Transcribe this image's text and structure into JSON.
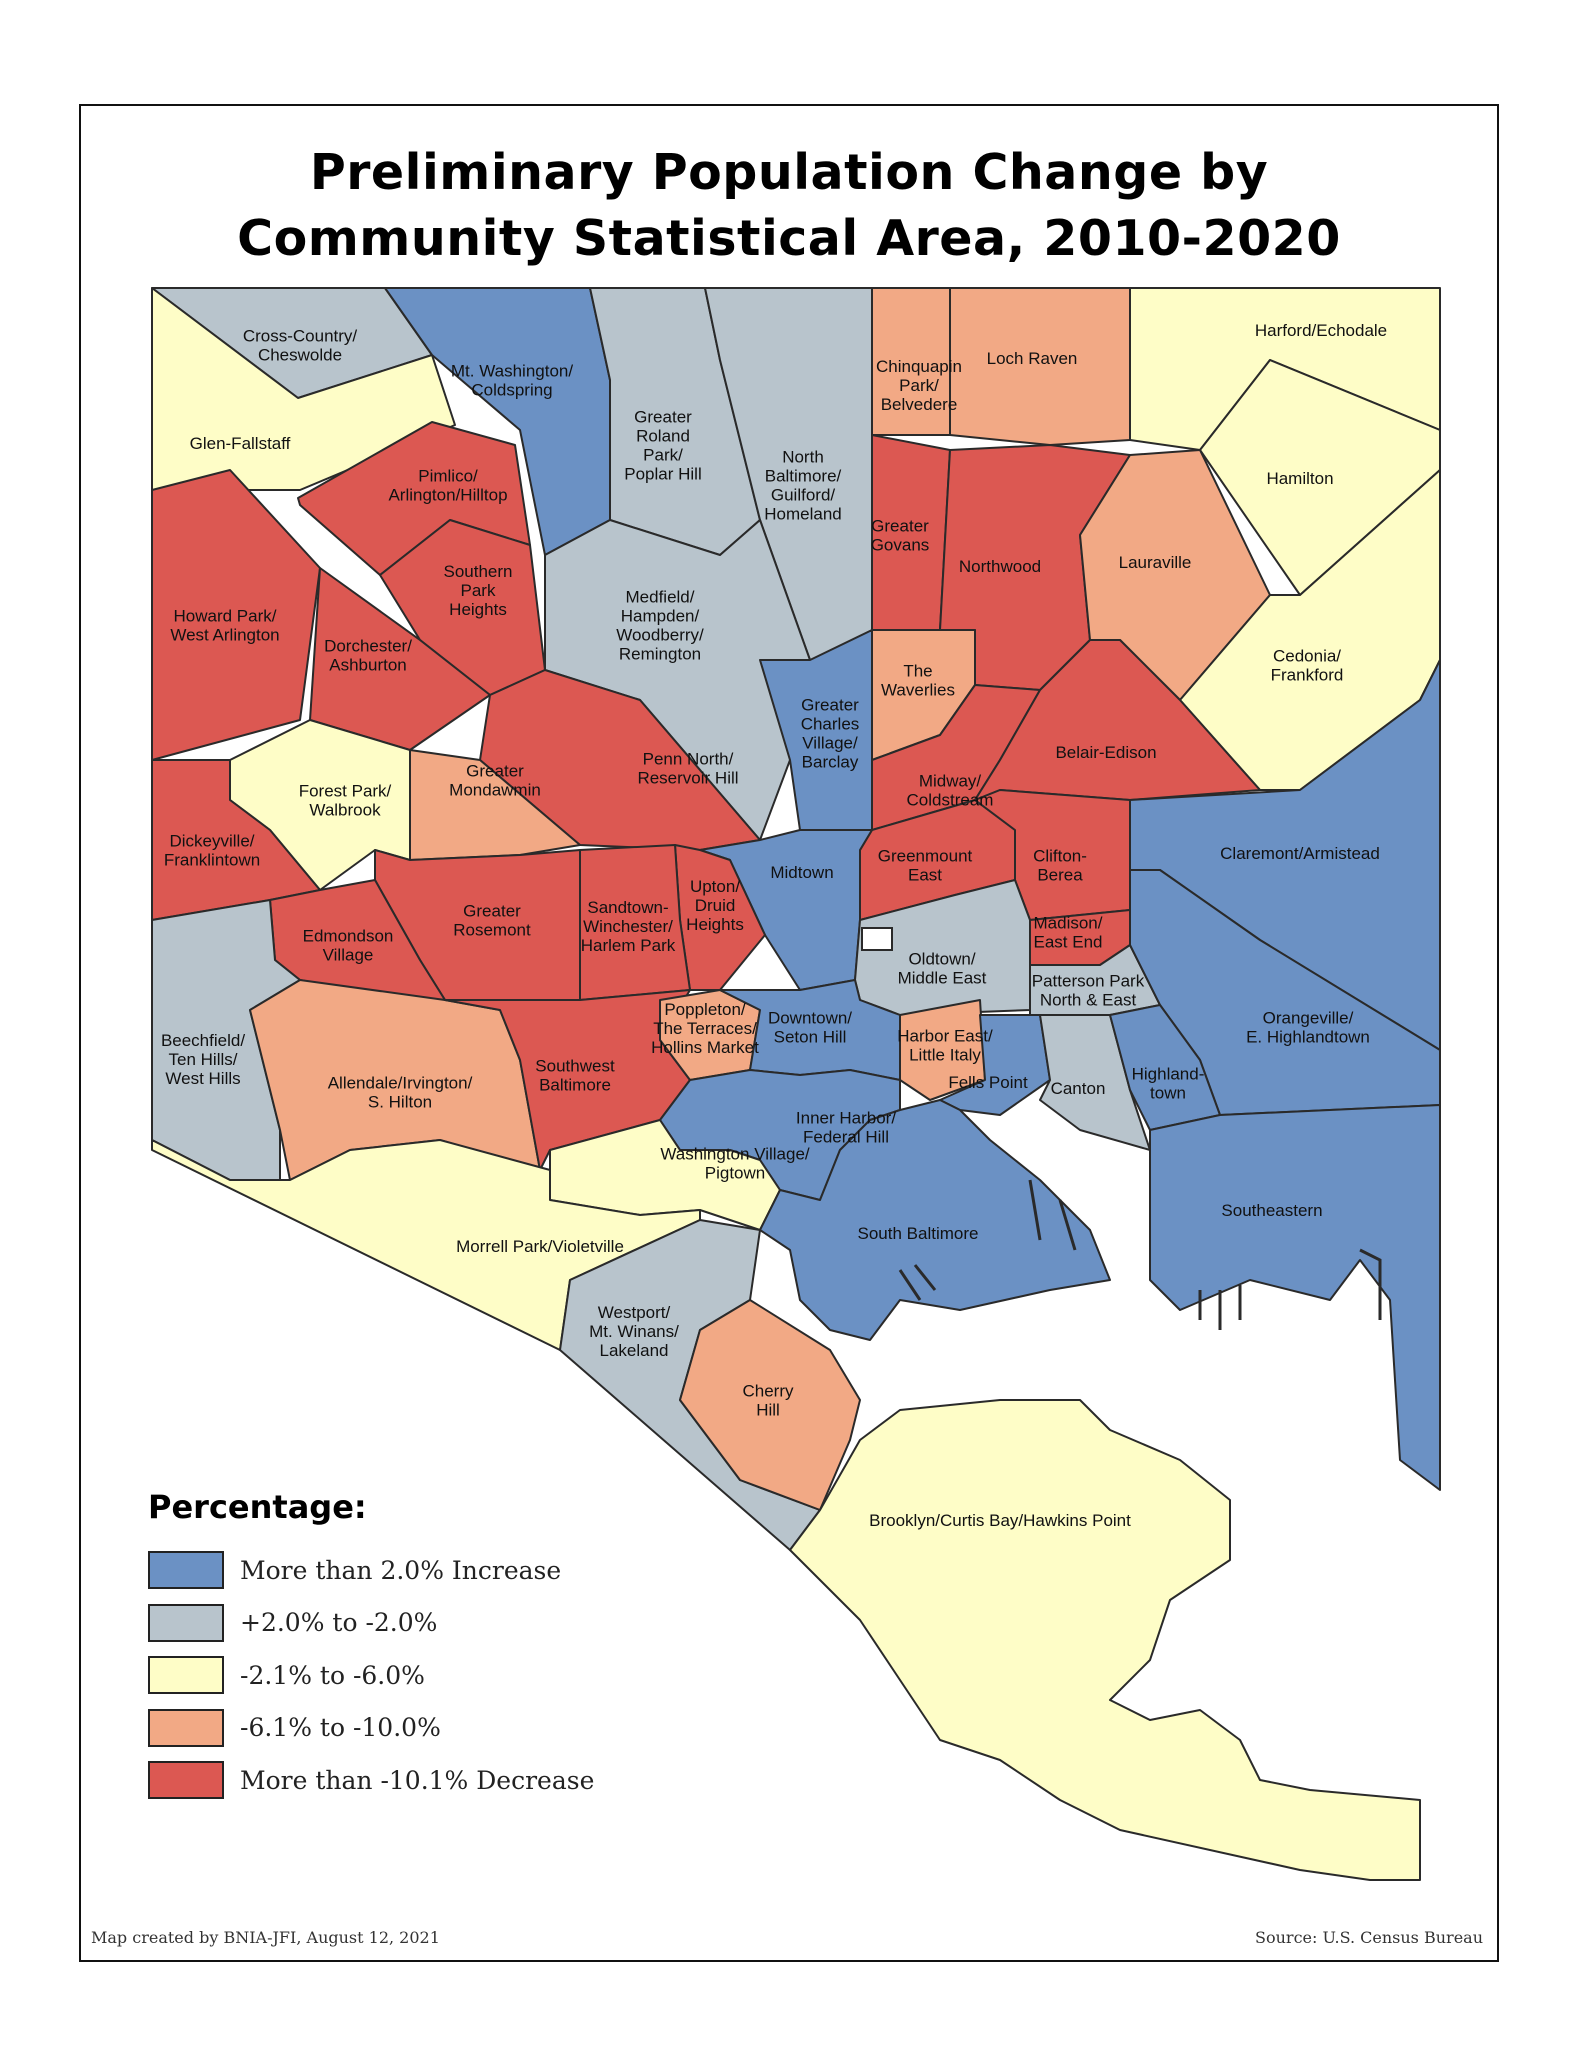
{
  "title": {
    "line1": "Preliminary Population Change by",
    "line2": "Community Statistical Area, 2010-2020"
  },
  "legend": {
    "title": "Percentage:",
    "items": [
      {
        "label": "More than 2.0% Increase",
        "color": "#6b91c4"
      },
      {
        "label": "+2.0% to -2.0%",
        "color": "#b8c4cc"
      },
      {
        "label": "-2.1% to -6.0%",
        "color": "#fefdc7"
      },
      {
        "label": "-6.1% to -10.0%",
        "color": "#f2a985"
      },
      {
        "label": "More than -10.1% Decrease",
        "color": "#dc5852"
      }
    ]
  },
  "areas": [
    {
      "name": "Cross-Country/ Cheswolde",
      "lines": [
        "Cross-Country/",
        "Cheswolde"
      ],
      "category": "+2.0% to -2.0%"
    },
    {
      "name": "Mt. Washington/ Coldspring",
      "lines": [
        "Mt. Washington/",
        "Coldspring"
      ],
      "category": "More than 2.0% Increase"
    },
    {
      "name": "Greater Roland Park/ Poplar Hill",
      "lines": [
        "Greater",
        "Roland",
        "Park/",
        "Poplar Hill"
      ],
      "category": "+2.0% to -2.0%"
    },
    {
      "name": "North Baltimore/ Guilford/ Homeland",
      "lines": [
        "North",
        "Baltimore/",
        "Guilford/",
        "Homeland"
      ],
      "category": "+2.0% to -2.0%"
    },
    {
      "name": "Chinquapin Park/ Belvedere",
      "lines": [
        "Chinquapin",
        "Park/",
        "Belvedere"
      ],
      "category": "-6.1% to -10.0%"
    },
    {
      "name": "Loch Raven",
      "lines": [
        "Loch Raven"
      ],
      "category": "-6.1% to -10.0%"
    },
    {
      "name": "Harford/Echodale",
      "lines": [
        "Harford/Echodale"
      ],
      "category": "-2.1% to -6.0%"
    },
    {
      "name": "Glen-Fallstaff",
      "lines": [
        "Glen-Fallstaff"
      ],
      "category": "-2.1% to -6.0%"
    },
    {
      "name": "Pimlico/ Arlington/Hilltop",
      "lines": [
        "Pimlico/",
        "Arlington/Hilltop"
      ],
      "category": "More than -10.1% Decrease"
    },
    {
      "name": "Hamilton",
      "lines": [
        "Hamilton"
      ],
      "category": "-2.1% to -6.0%"
    },
    {
      "name": "Greater Govans",
      "lines": [
        "Greater",
        "Govans"
      ],
      "category": "More than -10.1% Decrease"
    },
    {
      "name": "Northwood",
      "lines": [
        "Northwood"
      ],
      "category": "More than -10.1% Decrease"
    },
    {
      "name": "Lauraville",
      "lines": [
        "Lauraville"
      ],
      "category": "-6.1% to -10.0%"
    },
    {
      "name": "Southern Park Heights",
      "lines": [
        "Southern",
        "Park",
        "Heights"
      ],
      "category": "More than -10.1% Decrease"
    },
    {
      "name": "Howard Park/ West Arlington",
      "lines": [
        "Howard Park/",
        "West Arlington"
      ],
      "category": "More than -10.1% Decrease"
    },
    {
      "name": "Medfield/ Hampden/ Woodberry/ Remington",
      "lines": [
        "Medfield/",
        "Hampden/",
        "Woodberry/",
        "Remington"
      ],
      "category": "+2.0% to -2.0%"
    },
    {
      "name": "Dorchester/ Ashburton",
      "lines": [
        "Dorchester/",
        "Ashburton"
      ],
      "category": "More than -10.1% Decrease"
    },
    {
      "name": "The Waverlies",
      "lines": [
        "The",
        "Waverlies"
      ],
      "category": "-6.1% to -10.0%"
    },
    {
      "name": "Cedonia/ Frankford",
      "lines": [
        "Cedonia/",
        "Frankford"
      ],
      "category": "-2.1% to -6.0%"
    },
    {
      "name": "Greater Charles Village/ Barclay",
      "lines": [
        "Greater",
        "Charles",
        "Village/",
        "Barclay"
      ],
      "category": "More than 2.0% Increase"
    },
    {
      "name": "Penn North/ Reservoir Hill",
      "lines": [
        "Penn North/",
        "Reservoir Hill"
      ],
      "category": "More than -10.1% Decrease"
    },
    {
      "name": "Belair-Edison",
      "lines": [
        "Belair-Edison"
      ],
      "category": "More than -10.1% Decrease"
    },
    {
      "name": "Greater Mondawmin",
      "lines": [
        "Greater",
        "Mondawmin"
      ],
      "category": "-6.1% to -10.0%"
    },
    {
      "name": "Forest Park/ Walbrook",
      "lines": [
        "Forest Park/",
        "Walbrook"
      ],
      "category": "-2.1% to -6.0%"
    },
    {
      "name": "Midway/ Coldstream",
      "lines": [
        "Midway/",
        "Coldstream"
      ],
      "category": "More than -10.1% Decrease"
    },
    {
      "name": "Dickeyville/ Franklintown",
      "lines": [
        "Dickeyville/",
        "Franklintown"
      ],
      "category": "More than -10.1% Decrease"
    },
    {
      "name": "Claremont/Armistead",
      "lines": [
        "Claremont/Armistead"
      ],
      "category": "More than 2.0% Increase"
    },
    {
      "name": "Greenmount East",
      "lines": [
        "Greenmount",
        "East"
      ],
      "category": "More than -10.1% Decrease"
    },
    {
      "name": "Clifton-Berea",
      "lines": [
        "Clifton-",
        "Berea"
      ],
      "category": "More than -10.1% Decrease"
    },
    {
      "name": "Midtown",
      "lines": [
        "Midtown"
      ],
      "category": "More than 2.0% Increase"
    },
    {
      "name": "Upton/ Druid Heights",
      "lines": [
        "Upton/",
        "Druid",
        "Heights"
      ],
      "category": "More than -10.1% Decrease"
    },
    {
      "name": "Sandtown-Winchester/ Harlem Park",
      "lines": [
        "Sandtown-",
        "Winchester/",
        "Harlem Park"
      ],
      "category": "More than -10.1% Decrease"
    },
    {
      "name": "Greater Rosemont",
      "lines": [
        "Greater",
        "Rosemont"
      ],
      "category": "More than -10.1% Decrease"
    },
    {
      "name": "Edmondson Village",
      "lines": [
        "Edmondson",
        "Village"
      ],
      "category": "More than -10.1% Decrease"
    },
    {
      "name": "Madison/ East End",
      "lines": [
        "Madison/",
        "East End"
      ],
      "category": "More than -10.1% Decrease"
    },
    {
      "name": "Oldtown/ Middle East",
      "lines": [
        "Oldtown/",
        "Middle East"
      ],
      "category": "+2.0% to -2.0%"
    },
    {
      "name": "Patterson Park North & East",
      "lines": [
        "Patterson Park",
        "North & East"
      ],
      "category": "+2.0% to -2.0%"
    },
    {
      "name": "Orangeville/ E. Highlandtown",
      "lines": [
        "Orangeville/",
        "E. Highlandtown"
      ],
      "category": "More than 2.0% Increase"
    },
    {
      "name": "Beechfield/ Ten Hills/ West Hills",
      "lines": [
        "Beechfield/",
        "Ten Hills/",
        "West Hills"
      ],
      "category": "+2.0% to -2.0%"
    },
    {
      "name": "Poppleton/ The Terraces/ Hollins Market",
      "lines": [
        "Poppleton/",
        "The Terraces/",
        "Hollins Market"
      ],
      "category": "-6.1% to -10.0%"
    },
    {
      "name": "Downtown/ Seton Hill",
      "lines": [
        "Downtown/",
        "Seton Hill"
      ],
      "category": "More than 2.0% Increase"
    },
    {
      "name": "Harbor East/ Little Italy",
      "lines": [
        "Harbor East/",
        "Little Italy"
      ],
      "category": "-6.1% to -10.0%"
    },
    {
      "name": "Allendale/Irvington/ S. Hilton",
      "lines": [
        "Allendale/Irvington/",
        "S. Hilton"
      ],
      "category": "-6.1% to -10.0%"
    },
    {
      "name": "Southwest Baltimore",
      "lines": [
        "Southwest",
        "Baltimore"
      ],
      "category": "More than -10.1% Decrease"
    },
    {
      "name": "Fells Point",
      "lines": [
        "Fells Point"
      ],
      "category": "More than 2.0% Increase"
    },
    {
      "name": "Canton",
      "lines": [
        "Canton"
      ],
      "category": "+2.0% to -2.0%"
    },
    {
      "name": "Highlandtown",
      "lines": [
        "Highland-",
        "town"
      ],
      "category": "More than 2.0% Increase"
    },
    {
      "name": "Inner Harbor/ Federal Hill",
      "lines": [
        "Inner Harbor/",
        "Federal Hill"
      ],
      "category": "More than 2.0% Increase"
    },
    {
      "name": "Washington Village/ Pigtown",
      "lines": [
        "Washington Village/",
        "Pigtown"
      ],
      "category": "-2.1% to -6.0%"
    },
    {
      "name": "Southeastern",
      "lines": [
        "Southeastern"
      ],
      "category": "More than 2.0% Increase"
    },
    {
      "name": "South Baltimore",
      "lines": [
        "South Baltimore"
      ],
      "category": "More than 2.0% Increase"
    },
    {
      "name": "Morrell Park/Violetville",
      "lines": [
        "Morrell Park/Violetville"
      ],
      "category": "-2.1% to -6.0%"
    },
    {
      "name": "Westport/ Mt. Winans/ Lakeland",
      "lines": [
        "Westport/",
        "Mt. Winans/",
        "Lakeland"
      ],
      "category": "+2.0% to -2.0%"
    },
    {
      "name": "Cherry Hill",
      "lines": [
        "Cherry",
        "Hill"
      ],
      "category": "-6.1% to -10.0%"
    },
    {
      "name": "Brooklyn/Curtis Bay/Hawkins Point",
      "lines": [
        "Brooklyn/Curtis Bay/Hawkins Point"
      ],
      "category": "-2.1% to -6.0%"
    }
  ],
  "credit": "Map created by BNIA-JFI, August 12, 2021",
  "source": "Source: U.S. Census Bureau"
}
